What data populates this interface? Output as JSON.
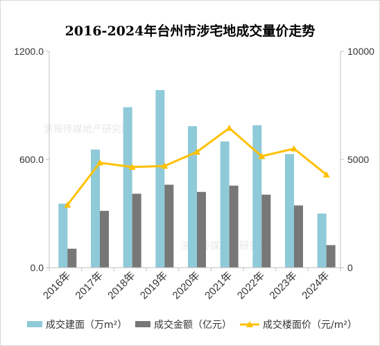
{
  "chart_data": {
    "type": "bar",
    "title": "2016-2024年台州市涉宅地成交量价走势",
    "categories": [
      "2016年",
      "2017年",
      "2018年",
      "2019年",
      "2020年",
      "2021年",
      "2022年",
      "2023年",
      "2024年"
    ],
    "series": [
      {
        "name": "成交建面（万m²）",
        "type": "bar",
        "axis": "left",
        "color": "#8fcad8",
        "values": [
          355,
          655,
          890,
          985,
          785,
          700,
          790,
          630,
          300
        ]
      },
      {
        "name": "成交金额（亿元）",
        "type": "bar",
        "axis": "left",
        "color": "#777777",
        "values": [
          105,
          315,
          410,
          460,
          420,
          455,
          405,
          345,
          125
        ]
      },
      {
        "name": "成交楼面价（元/m²）",
        "type": "line",
        "axis": "right",
        "color": "#ffc000",
        "marker": "triangle",
        "values": [
          2900,
          4850,
          4650,
          4700,
          5350,
          6450,
          5150,
          5500,
          4300
        ]
      }
    ],
    "y_left": {
      "min": 0,
      "max": 1200,
      "ticks": [
        "0.0",
        "600.0",
        "1200.0"
      ],
      "tick_values": [
        0,
        600,
        1200
      ]
    },
    "y_right": {
      "min": 0,
      "max": 10000,
      "ticks": [
        "0",
        "5000",
        "10000"
      ],
      "tick_values": [
        0,
        5000,
        10000
      ]
    },
    "grid": false,
    "legend_position": "bottom",
    "watermark": "浙报传媒地产研究院"
  }
}
